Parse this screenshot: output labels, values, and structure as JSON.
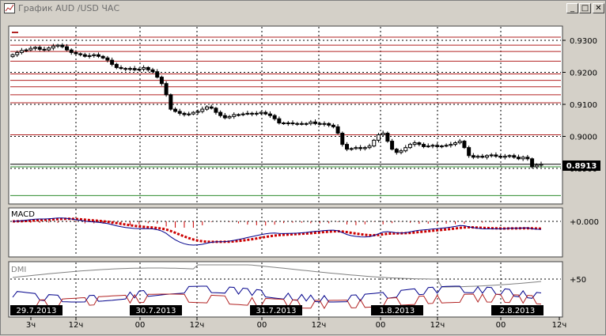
{
  "window": {
    "title": "График AUD /USD ЧАС",
    "buttons": {
      "minimize": "_",
      "maximize": "□",
      "close": "✕"
    }
  },
  "colors": {
    "background": "#ffffff",
    "frame": "#d4d0c8",
    "candle": "#000000",
    "resistance_level": "#b22222",
    "support_level": "#2e8b2e",
    "macd_histogram": "#cc0000",
    "macd_signal": "#cc0000",
    "macd_line": "#00008b",
    "dmi_adx": "#808080",
    "dmi_plus": "#00008b",
    "dmi_minus": "#b22222"
  },
  "price_panel": {
    "y_axis_ticks": [
      "0.9300",
      "0.9200",
      "0.9100",
      "0.9000",
      "0.8900"
    ],
    "current_price": "0.8913",
    "levels_red": [
      0.931,
      0.9285,
      0.9265,
      0.9235,
      0.9195,
      0.9175,
      0.9155,
      0.913,
      0.9105,
      0.9005
    ],
    "levels_green": [
      0.8905,
      0.8815
    ]
  },
  "macd_panel": {
    "label": "MACD",
    "zero_label": "+0.000"
  },
  "dmi_panel": {
    "label": "DMI",
    "level_label": "+50"
  },
  "x_axis": {
    "date_labels": [
      "29.7.2013",
      "30.7.2013",
      "31.7.2013",
      "1.8.2013",
      "2.8.2013"
    ],
    "hour_ticks": [
      "3ч",
      "12ч",
      "00",
      "12ч",
      "00",
      "12ч",
      "00",
      "12ч",
      "00",
      "12ч"
    ]
  },
  "chart_data": {
    "type": "candlestick",
    "symbol": "AUD/USD",
    "timeframe": "ЧАС",
    "ylim": [
      0.881,
      0.934
    ],
    "close": [
      0.9255,
      0.9262,
      0.9268,
      0.927,
      0.9275,
      0.9278,
      0.9272,
      0.927,
      0.9276,
      0.9282,
      0.9285,
      0.928,
      0.927,
      0.9262,
      0.9258,
      0.9255,
      0.925,
      0.9252,
      0.9255,
      0.925,
      0.9245,
      0.9238,
      0.9225,
      0.9215,
      0.9212,
      0.921,
      0.9212,
      0.9208,
      0.921,
      0.9215,
      0.9208,
      0.9202,
      0.9185,
      0.9165,
      0.913,
      0.9085,
      0.9078,
      0.9072,
      0.9068,
      0.907,
      0.9075,
      0.9078,
      0.9085,
      0.9092,
      0.9088,
      0.9075,
      0.9065,
      0.9058,
      0.9062,
      0.9068,
      0.9068,
      0.907,
      0.9072,
      0.907,
      0.9072,
      0.9075,
      0.907,
      0.9065,
      0.9055,
      0.9042,
      0.904,
      0.9042,
      0.904,
      0.9038,
      0.904,
      0.904,
      0.9045,
      0.904,
      0.9038,
      0.904,
      0.9035,
      0.903,
      0.901,
      0.8975,
      0.896,
      0.8962,
      0.8965,
      0.8962,
      0.8965,
      0.897,
      0.8988,
      0.9005,
      0.901,
      0.8985,
      0.896,
      0.895,
      0.8955,
      0.8965,
      0.8975,
      0.898,
      0.8975,
      0.8968,
      0.897,
      0.8972,
      0.8968,
      0.897,
      0.8972,
      0.8975,
      0.898,
      0.8985,
      0.8965,
      0.894,
      0.8935,
      0.8938,
      0.8935,
      0.894,
      0.8942,
      0.8938,
      0.8935,
      0.8938,
      0.894,
      0.8935,
      0.893,
      0.8935,
      0.893,
      0.8905,
      0.891,
      0.8913
    ]
  }
}
